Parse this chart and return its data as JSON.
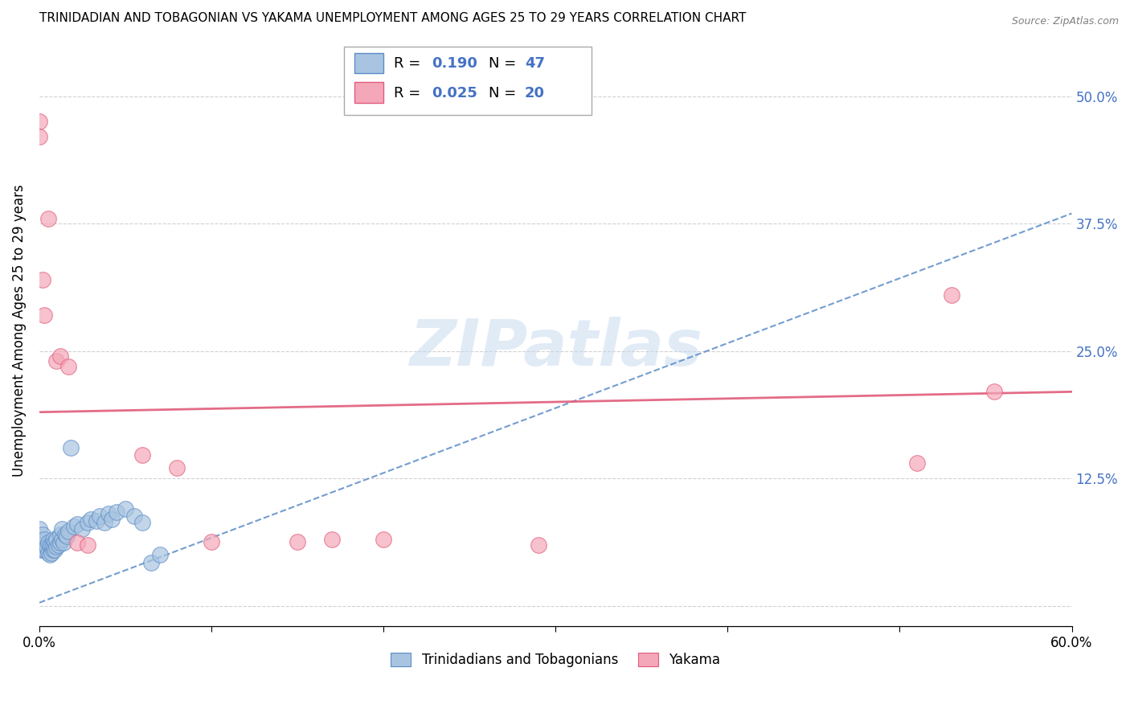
{
  "title": "TRINIDADIAN AND TOBAGONIAN VS YAKAMA UNEMPLOYMENT AMONG AGES 25 TO 29 YEARS CORRELATION CHART",
  "source": "Source: ZipAtlas.com",
  "ylabel": "Unemployment Among Ages 25 to 29 years",
  "xlim": [
    0.0,
    0.6
  ],
  "ylim": [
    -0.02,
    0.56
  ],
  "blue_color": "#a8c4e0",
  "blue_color_dark": "#5b8cc8",
  "pink_color": "#f4a7b9",
  "pink_color_dark": "#e05c7a",
  "legend_R_blue": "R = 0.190",
  "legend_N_blue": "47",
  "legend_R_pink": "R = 0.025",
  "legend_N_pink": "20",
  "legend_label_blue": "Trinidadians and Tobagonians",
  "legend_label_pink": "Yakama",
  "watermark": "ZIPatlas",
  "background_color": "#ffffff",
  "grid_color": "#cccccc",
  "blue_x": [
    0.0,
    0.0,
    0.0,
    0.002,
    0.002,
    0.003,
    0.003,
    0.004,
    0.005,
    0.005,
    0.006,
    0.006,
    0.007,
    0.007,
    0.008,
    0.008,
    0.008,
    0.009,
    0.009,
    0.01,
    0.01,
    0.011,
    0.012,
    0.012,
    0.013,
    0.013,
    0.014,
    0.015,
    0.016,
    0.017,
    0.018,
    0.02,
    0.022,
    0.025,
    0.028,
    0.03,
    0.033,
    0.035,
    0.038,
    0.04,
    0.042,
    0.045,
    0.05,
    0.055,
    0.06,
    0.065,
    0.07
  ],
  "blue_y": [
    0.055,
    0.065,
    0.075,
    0.06,
    0.07,
    0.055,
    0.065,
    0.058,
    0.052,
    0.062,
    0.05,
    0.06,
    0.052,
    0.06,
    0.055,
    0.06,
    0.065,
    0.055,
    0.063,
    0.058,
    0.065,
    0.06,
    0.062,
    0.07,
    0.065,
    0.075,
    0.062,
    0.07,
    0.068,
    0.073,
    0.155,
    0.078,
    0.08,
    0.075,
    0.082,
    0.085,
    0.083,
    0.088,
    0.082,
    0.09,
    0.085,
    0.092,
    0.095,
    0.088,
    0.082,
    0.042,
    0.05
  ],
  "pink_x": [
    0.0,
    0.0,
    0.002,
    0.003,
    0.005,
    0.01,
    0.012,
    0.017,
    0.022,
    0.028,
    0.06,
    0.08,
    0.1,
    0.15,
    0.17,
    0.2,
    0.29,
    0.51,
    0.53,
    0.555
  ],
  "pink_y": [
    0.475,
    0.46,
    0.32,
    0.285,
    0.38,
    0.24,
    0.245,
    0.235,
    0.062,
    0.06,
    0.148,
    0.135,
    0.063,
    0.063,
    0.065,
    0.065,
    0.06,
    0.14,
    0.305,
    0.21
  ],
  "blue_trend_x0": 0.0,
  "blue_trend_x1": 0.6,
  "blue_trend_y0": 0.003,
  "blue_trend_y1": 0.385,
  "pink_trend_x0": 0.0,
  "pink_trend_x1": 0.6,
  "pink_trend_y0": 0.19,
  "pink_trend_y1": 0.21
}
